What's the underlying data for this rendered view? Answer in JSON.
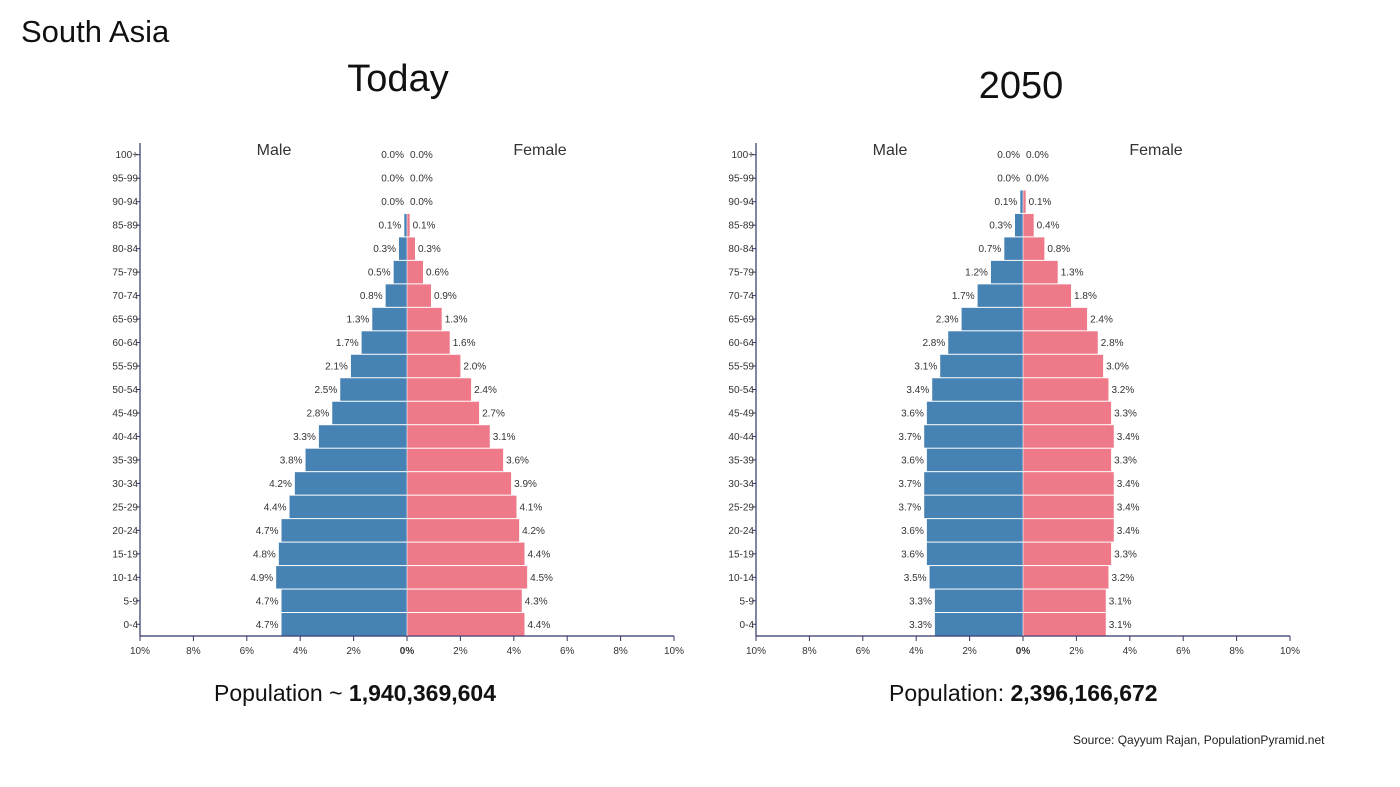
{
  "region_title": "South Asia",
  "source": "Source: Qayyum Rajan, PopulationPyramid.net",
  "colors": {
    "male": "#4682b4",
    "female": "#ee7989",
    "axis": "#333366"
  },
  "charts": [
    {
      "title": "Today",
      "population_label": "Population ~ ",
      "population_value": "1,940,369,604"
    },
    {
      "title": "2050",
      "population_label": "Population: ",
      "population_value": "2,396,166,672"
    }
  ],
  "chart_data": [
    {
      "type": "bar",
      "title": "Today",
      "xlabel": "",
      "ylabel": "",
      "male_label": "Male",
      "female_label": "Female",
      "xlim": [
        -10,
        10
      ],
      "xticks": [
        "10%",
        "8%",
        "6%",
        "4%",
        "2%",
        "0%",
        "2%",
        "4%",
        "6%",
        "8%",
        "10%"
      ],
      "categories": [
        "0-4",
        "5-9",
        "10-14",
        "15-19",
        "20-24",
        "25-29",
        "30-34",
        "35-39",
        "40-44",
        "45-49",
        "50-54",
        "55-59",
        "60-64",
        "65-69",
        "70-74",
        "75-79",
        "80-84",
        "85-89",
        "90-94",
        "95-99",
        "100+"
      ],
      "series": [
        {
          "name": "Male",
          "values": [
            4.7,
            4.7,
            4.9,
            4.8,
            4.7,
            4.4,
            4.2,
            3.8,
            3.3,
            2.8,
            2.5,
            2.1,
            1.7,
            1.3,
            0.8,
            0.5,
            0.3,
            0.1,
            0.0,
            0.0,
            0.0
          ]
        },
        {
          "name": "Female",
          "values": [
            4.4,
            4.3,
            4.5,
            4.4,
            4.2,
            4.1,
            3.9,
            3.6,
            3.1,
            2.7,
            2.4,
            2.0,
            1.6,
            1.3,
            0.9,
            0.6,
            0.3,
            0.1,
            0.0,
            0.0,
            0.0
          ]
        }
      ]
    },
    {
      "type": "bar",
      "title": "2050",
      "xlabel": "",
      "ylabel": "",
      "male_label": "Male",
      "female_label": "Female",
      "xlim": [
        -10,
        10
      ],
      "xticks": [
        "10%",
        "8%",
        "6%",
        "4%",
        "2%",
        "0%",
        "2%",
        "4%",
        "6%",
        "8%",
        "10%"
      ],
      "categories": [
        "0-4",
        "5-9",
        "10-14",
        "15-19",
        "20-24",
        "25-29",
        "30-34",
        "35-39",
        "40-44",
        "45-49",
        "50-54",
        "55-59",
        "60-64",
        "65-69",
        "70-74",
        "75-79",
        "80-84",
        "85-89",
        "90-94",
        "95-99",
        "100+"
      ],
      "series": [
        {
          "name": "Male",
          "values": [
            3.3,
            3.3,
            3.5,
            3.6,
            3.6,
            3.7,
            3.7,
            3.6,
            3.7,
            3.6,
            3.4,
            3.1,
            2.8,
            2.3,
            1.7,
            1.2,
            0.7,
            0.3,
            0.1,
            0.0,
            0.0
          ]
        },
        {
          "name": "Female",
          "values": [
            3.1,
            3.1,
            3.2,
            3.3,
            3.4,
            3.4,
            3.4,
            3.3,
            3.4,
            3.3,
            3.2,
            3.0,
            2.8,
            2.4,
            1.8,
            1.3,
            0.8,
            0.4,
            0.1,
            0.0,
            0.0
          ]
        }
      ]
    }
  ]
}
